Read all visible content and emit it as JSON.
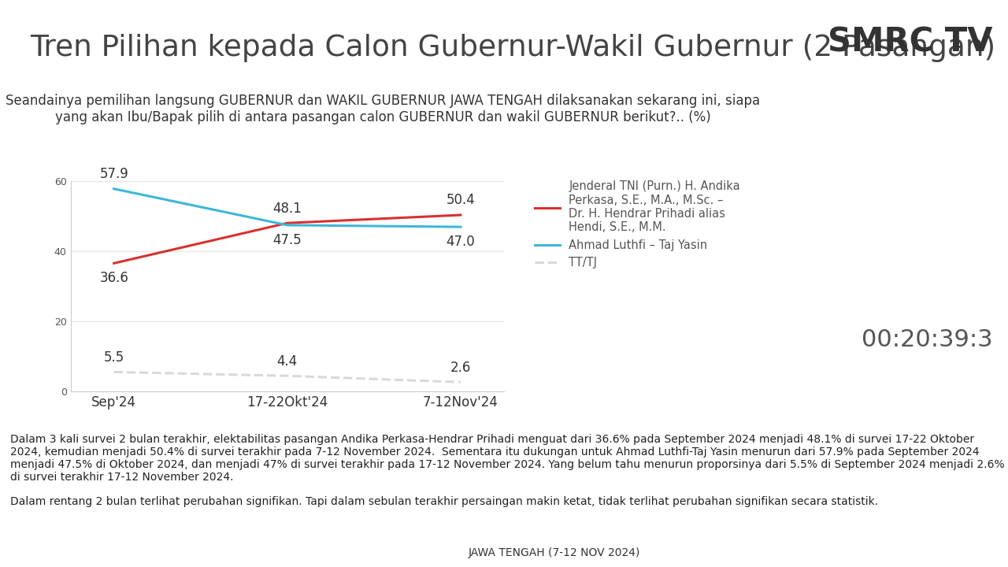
{
  "chart_data": {
    "type": "line",
    "title": "Tren Pilihan kepada Calon Gubernur-Wakil Gubernur (2 Pasangan)",
    "subtitle": "Seandainya pemilihan langsung GUBERNUR dan WAKIL GUBERNUR JAWA TENGAH dilaksanakan sekarang ini, siapa yang akan Ibu/Bapak pilih di antara pasangan calon GUBERNUR dan wakil GUBERNUR berikut?.. (%)",
    "categories": [
      "Sep'24",
      "17-22Okt'24",
      "7-12Nov'24"
    ],
    "series": [
      {
        "name": "Jenderal TNI (Purn.) H. Andika Perkasa, S.E., M.A., M.Sc. – Dr. H. Hendrar Prihadi alias Hendi, S.E., M.M.",
        "color": "#d93030",
        "line_style": "solid",
        "values": [
          36.6,
          48.1,
          50.4
        ]
      },
      {
        "name": "Ahmad Luthfi – Taj Yasin",
        "color": "#3db7d8",
        "line_style": "solid",
        "values": [
          57.9,
          47.5,
          47.0
        ]
      },
      {
        "name": "TT/TJ",
        "color": "#d9d9d9",
        "line_style": "dashed",
        "values": [
          5.5,
          4.4,
          2.6
        ]
      }
    ],
    "ylim": [
      0,
      60
    ],
    "yticks": [
      0,
      20,
      40,
      60
    ],
    "grid": true,
    "legend": "upper left",
    "data_labels": true,
    "annotations": [
      "Dalam 3 kali survei 2 bulan terakhir, elektabilitas pasangan Andika Perkasa-Hendrar Prihadi menguat dari 36.6% pada September 2024 menjadi 48.1% di survei 17-22 Oktober 2024, kemudian menjadi 50.4% di survei terakhir pada 7-12 November 2024.  Sementara itu dukungan untuk Ahmad Luthfi-Taj Yasin menurun dari 57.9% pada September 2024 menjadi 47.5% di Oktober 2024, dan menjadi 47% di survei terakhir pada 17-12 November 2024. Yang belum tahu menurun proporsinya dari 5.5% di September 2024 menjadi 2.6% di survei terakhir 17-12 November 2024.",
      "Dalam rentang 2 bulan terlihat perubahan signifikan. Tapi dalam sebulan terakhir persaingan makin ketat, tidak terlihat perubahan signifikan secara statistik."
    ]
  },
  "screen": {
    "logo": "SMRC TV",
    "timer": "00:20:39:3",
    "footer": "JAWA TENGAH (7-12 NOV 2024)"
  }
}
